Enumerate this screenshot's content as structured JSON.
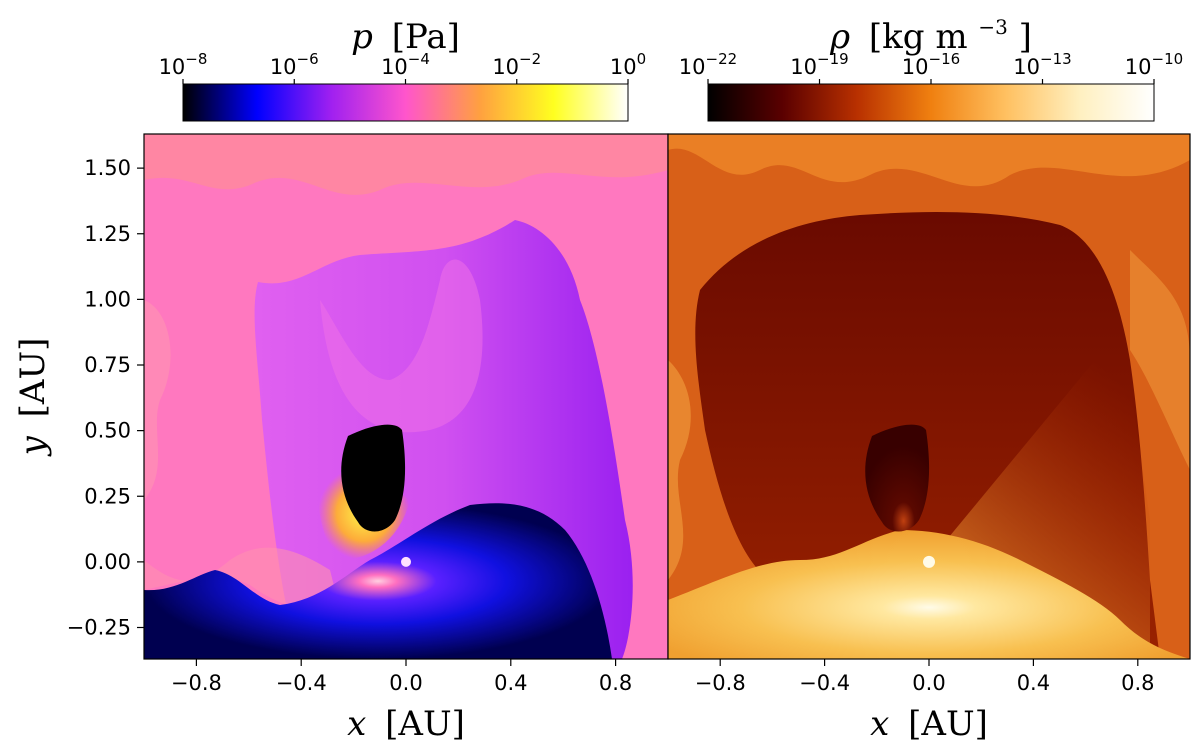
{
  "chart_data": {
    "type": "heatmap",
    "layout": "two panels side by side sharing the y axis, each with a horizontal colorbar above",
    "xlabel": {
      "symbol": "x",
      "unit": "[AU]"
    },
    "ylabel": {
      "symbol": "y",
      "unit": "[AU]"
    },
    "xlim": [
      -1.0,
      1.0
    ],
    "ylim": [
      -0.37,
      1.63
    ],
    "xticks": [
      -0.8,
      -0.4,
      0.0,
      0.4,
      0.8
    ],
    "xtick_labels": [
      "−0.8",
      "−0.4",
      "0.0",
      "0.4",
      "0.8"
    ],
    "yticks": [
      -0.25,
      0.0,
      0.25,
      0.5,
      0.75,
      1.0,
      1.25,
      1.5
    ],
    "ytick_labels": [
      "−0.25",
      "0.00",
      "0.25",
      "0.50",
      "0.75",
      "1.00",
      "1.25",
      "1.50"
    ],
    "star_position": [
      0.0,
      0.0
    ],
    "panels": [
      {
        "quantity": "pressure",
        "colorbar_label": {
          "symbol": "p",
          "unit": "[Pa]"
        },
        "colormap": "gnuplot2",
        "scale": "log",
        "colorbar_range": [
          1e-08,
          1.0
        ],
        "colorbar_ticks": [
          {
            "exp": -8,
            "label_base": "10",
            "label_exp": "−8"
          },
          {
            "exp": -6,
            "label_base": "10",
            "label_exp": "−6"
          },
          {
            "exp": -4,
            "label_base": "10",
            "label_exp": "−4"
          },
          {
            "exp": -2,
            "label_base": "10",
            "label_exp": "−2"
          },
          {
            "exp": 0,
            "label_base": "10",
            "label_exp": "0"
          }
        ],
        "colorbar_stops": [
          "#000000",
          "#0000ff",
          "#a020f0",
          "#ff55cc",
          "#ffa040",
          "#ffff20",
          "#ffffff"
        ]
      },
      {
        "quantity": "density",
        "colorbar_label": {
          "symbol": "ρ",
          "unit": "[kg m",
          "unit_exp": "−3",
          "unit_close": "]"
        },
        "colormap": "afmhot",
        "scale": "log",
        "colorbar_range": [
          1e-22,
          1e-10
        ],
        "colorbar_ticks": [
          {
            "exp": -22,
            "label_base": "10",
            "label_exp": "−22"
          },
          {
            "exp": -19,
            "label_base": "10",
            "label_exp": "−19"
          },
          {
            "exp": -16,
            "label_base": "10",
            "label_exp": "−16"
          },
          {
            "exp": -13,
            "label_base": "10",
            "label_exp": "−13"
          },
          {
            "exp": -10,
            "label_base": "10",
            "label_exp": "−10"
          }
        ],
        "colorbar_stops": [
          "#000000",
          "#5a0000",
          "#b83000",
          "#f08010",
          "#ffc060",
          "#fff0c0",
          "#ffffff"
        ]
      }
    ]
  }
}
